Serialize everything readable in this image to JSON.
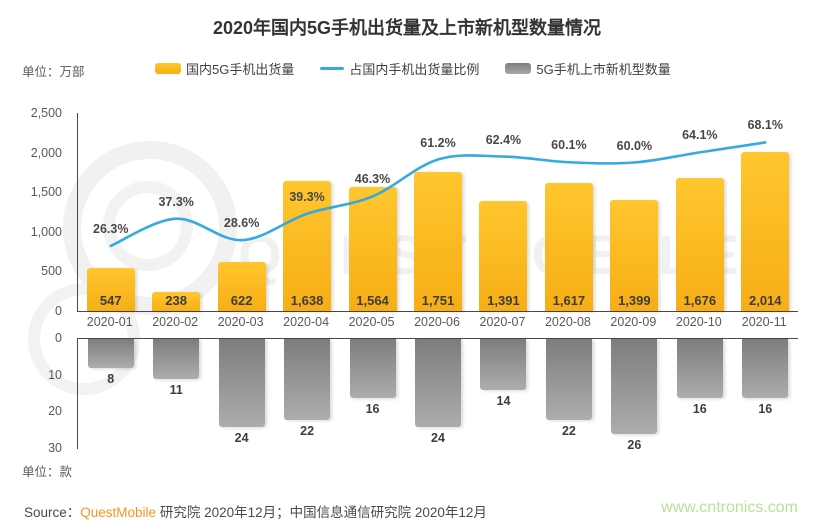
{
  "page": {
    "title": "2020年国内5G手机出货量及上市新机型数量情况",
    "unit_top": "单位：万部",
    "unit_bottom": "单位：款"
  },
  "legend": [
    {
      "label": "国内5G手机出货量",
      "type": "bar",
      "color": "#FBB924"
    },
    {
      "label": "占国内手机出货量比例",
      "type": "line",
      "color": "#36A9E0"
    },
    {
      "label": "5G手机上市新机型数量",
      "type": "bar",
      "color": "#8C8C8C"
    }
  ],
  "footer": {
    "prefix": "Source：",
    "brand": "QuestMobile",
    "rest": " 研究院 2020年12月；中国信息通信研究院 2020年12月",
    "site": "www.cntronics.com"
  },
  "watermark": {
    "text": "QUESTMOBILE"
  },
  "colors": {
    "bar_yellow": "#FBB924",
    "line_blue": "#36A9E0",
    "bar_gray": "#8C8C8C",
    "brand_orange": "#F7941E",
    "site_green": "#BCDF97",
    "axis": "#4A4A4A"
  },
  "chart_data": {
    "type": "combo",
    "categories": [
      "2020-01",
      "2020-02",
      "2020-03",
      "2020-04",
      "2020-05",
      "2020-06",
      "2020-07",
      "2020-08",
      "2020-09",
      "2020-10",
      "2020-11"
    ],
    "series": [
      {
        "name": "国内5G手机出货量",
        "type": "bar",
        "axis": "top",
        "unit": "万部",
        "values": [
          547,
          238,
          622,
          1638,
          1564,
          1751,
          1391,
          1617,
          1399,
          1676,
          2014
        ],
        "labels": [
          "547",
          "238",
          "622",
          "1,638",
          "1,564",
          "1,751",
          "1,391",
          "1,617",
          "1,399",
          "1,676",
          "2,014"
        ]
      },
      {
        "name": "占国内手机出货量比例",
        "type": "line",
        "axis": "top-secondary",
        "values": [
          26.3,
          37.3,
          28.6,
          39.3,
          46.3,
          61.2,
          62.4,
          60.1,
          60.0,
          64.1,
          68.1
        ],
        "labels": [
          "26.3%",
          "37.3%",
          "28.6%",
          "39.3%",
          "46.3%",
          "61.2%",
          "62.4%",
          "60.1%",
          "60.0%",
          "64.1%",
          "68.1%"
        ]
      },
      {
        "name": "5G手机上市新机型数量",
        "type": "bar",
        "axis": "bottom",
        "unit": "款",
        "values": [
          8,
          11,
          24,
          22,
          16,
          24,
          14,
          22,
          26,
          16,
          16
        ],
        "labels": [
          "8",
          "11",
          "24",
          "22",
          "16",
          "24",
          "14",
          "22",
          "26",
          "16",
          "16"
        ]
      }
    ],
    "top_axis": {
      "ticks": [
        "2,500",
        "2,000",
        "1,500",
        "1,000",
        "500",
        "0"
      ],
      "min": 0,
      "max": 2500,
      "grid": false
    },
    "line_axis": {
      "min": 0,
      "max": 80,
      "visible": false
    },
    "bottom_axis": {
      "ticks": [
        "0",
        "10",
        "20",
        "30"
      ],
      "min": 0,
      "max": 30,
      "inverted": true,
      "grid": false
    },
    "legend_position": "top"
  }
}
